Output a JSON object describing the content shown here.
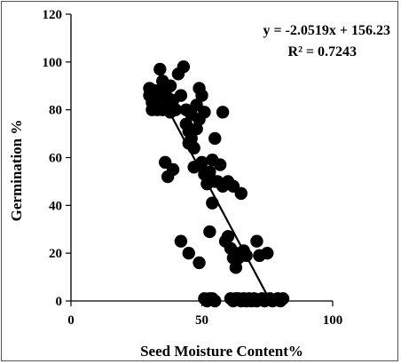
{
  "chart_data": {
    "type": "scatter",
    "xlabel": "Seed Moisture Content%",
    "ylabel": "Germination %",
    "xlim": [
      0,
      100
    ],
    "ylim": [
      0,
      120
    ],
    "xticks": [
      0,
      50,
      100
    ],
    "yticks": [
      0,
      20,
      40,
      60,
      80,
      100,
      120
    ],
    "grid": false,
    "point_color": "#000000",
    "trendline": {
      "type": "linear",
      "slope": -2.0519,
      "intercept": 156.23,
      "x_range": [
        33,
        76
      ],
      "color": "#000000"
    },
    "annotations": {
      "equation": "y = -2.0519x + 156.23",
      "r_squared": "R² = 0.7243"
    },
    "points": [
      [
        30,
        89
      ],
      [
        30,
        86
      ],
      [
        31,
        83
      ],
      [
        31,
        80
      ],
      [
        32,
        88
      ],
      [
        33,
        84
      ],
      [
        33,
        80
      ],
      [
        34,
        97
      ],
      [
        34,
        86
      ],
      [
        35,
        92
      ],
      [
        35,
        80
      ],
      [
        36,
        88
      ],
      [
        37,
        85
      ],
      [
        37,
        81
      ],
      [
        38,
        90
      ],
      [
        38,
        79
      ],
      [
        39,
        84
      ],
      [
        40,
        80
      ],
      [
        41,
        95
      ],
      [
        42,
        86
      ],
      [
        43,
        98
      ],
      [
        44,
        80
      ],
      [
        44,
        74
      ],
      [
        45,
        71
      ],
      [
        45,
        66
      ],
      [
        46,
        78
      ],
      [
        46,
        68
      ],
      [
        47,
        64
      ],
      [
        47,
        56
      ],
      [
        48,
        82
      ],
      [
        48,
        72
      ],
      [
        49,
        89
      ],
      [
        49,
        76
      ],
      [
        50,
        86
      ],
      [
        50,
        58
      ],
      [
        51,
        79
      ],
      [
        51,
        53
      ],
      [
        52,
        49
      ],
      [
        53,
        54
      ],
      [
        54,
        59
      ],
      [
        54,
        41
      ],
      [
        55,
        68
      ],
      [
        55,
        50
      ],
      [
        56,
        50
      ],
      [
        57,
        57
      ],
      [
        58,
        79
      ],
      [
        58,
        48
      ],
      [
        59,
        25
      ],
      [
        60,
        27
      ],
      [
        60,
        50
      ],
      [
        61,
        22
      ],
      [
        62,
        18
      ],
      [
        62,
        48
      ],
      [
        63,
        14
      ],
      [
        63,
        20
      ],
      [
        64,
        18
      ],
      [
        65,
        45
      ],
      [
        66,
        21
      ],
      [
        67,
        19
      ],
      [
        71,
        25
      ],
      [
        72,
        19
      ],
      [
        75,
        20
      ],
      [
        36,
        58
      ],
      [
        37,
        52
      ],
      [
        39,
        55
      ],
      [
        42,
        25
      ],
      [
        45,
        20
      ],
      [
        49,
        16
      ],
      [
        53,
        29
      ],
      [
        51,
        1
      ],
      [
        52,
        0
      ],
      [
        53,
        1
      ],
      [
        54,
        1
      ],
      [
        55,
        0
      ],
      [
        61,
        1
      ],
      [
        62,
        0
      ],
      [
        63,
        1
      ],
      [
        64,
        1
      ],
      [
        65,
        0
      ],
      [
        66,
        1
      ],
      [
        67,
        0
      ],
      [
        68,
        1
      ],
      [
        69,
        0
      ],
      [
        70,
        1
      ],
      [
        71,
        0
      ],
      [
        73,
        1
      ],
      [
        74,
        0
      ],
      [
        76,
        1
      ],
      [
        77,
        0
      ],
      [
        79,
        1
      ],
      [
        80,
        0
      ],
      [
        81,
        1
      ]
    ]
  }
}
